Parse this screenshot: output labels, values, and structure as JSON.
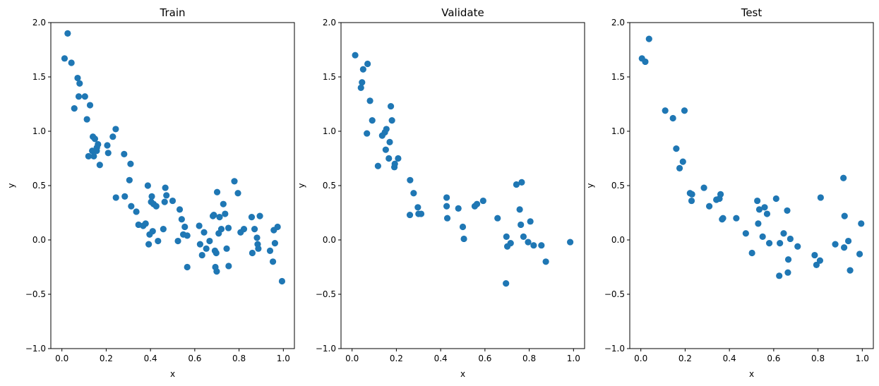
{
  "chart_data": [
    {
      "type": "scatter",
      "title": "Train",
      "xlabel": "x",
      "ylabel": "y",
      "xlim": [
        -0.05,
        1.05
      ],
      "ylim": [
        -1.0,
        2.0
      ],
      "xticks": [
        "0.0",
        "0.2",
        "0.4",
        "0.6",
        "0.8",
        "1.0"
      ],
      "yticks": [
        "−1.0",
        "−0.5",
        "0.0",
        "0.5",
        "1.0",
        "1.5",
        "2.0"
      ],
      "grid": false,
      "color": "#1f77b4",
      "series": [
        {
          "x": [
            0.012,
            0.026,
            0.043,
            0.056,
            0.071,
            0.076,
            0.08,
            0.104,
            0.113,
            0.12,
            0.127,
            0.137,
            0.144,
            0.14,
            0.149,
            0.157,
            0.158,
            0.163,
            0.171,
            0.205,
            0.209,
            0.23,
            0.243,
            0.244,
            0.281,
            0.284,
            0.305,
            0.31,
            0.313,
            0.336,
            0.346,
            0.367,
            0.378,
            0.388,
            0.392,
            0.396,
            0.403,
            0.406,
            0.41,
            0.414,
            0.426,
            0.434,
            0.458,
            0.464,
            0.467,
            0.472,
            0.5,
            0.524,
            0.532,
            0.541,
            0.548,
            0.555,
            0.566,
            0.566,
            0.62,
            0.624,
            0.633,
            0.642,
            0.652,
            0.667,
            0.682,
            0.686,
            0.691,
            0.693,
            0.697,
            0.699,
            0.701,
            0.708,
            0.712,
            0.72,
            0.729,
            0.737,
            0.744,
            0.752,
            0.753,
            0.779,
            0.795,
            0.807,
            0.822,
            0.857,
            0.86,
            0.87,
            0.881,
            0.884,
            0.887,
            0.894,
            0.94,
            0.953,
            0.957,
            0.962,
            0.974,
            0.994
          ],
          "y": [
            1.67,
            1.9,
            1.63,
            1.21,
            1.49,
            1.32,
            1.44,
            1.32,
            1.11,
            0.77,
            1.24,
            0.82,
            0.77,
            0.95,
            0.93,
            0.82,
            0.85,
            0.88,
            0.69,
            0.87,
            0.8,
            0.95,
            1.02,
            0.39,
            0.79,
            0.4,
            0.55,
            0.7,
            0.31,
            0.26,
            0.14,
            0.13,
            0.15,
            0.5,
            -0.04,
            0.05,
            0.35,
            0.4,
            0.08,
            0.33,
            0.31,
            -0.01,
            0.1,
            0.35,
            0.48,
            0.41,
            0.36,
            -0.01,
            0.28,
            0.19,
            0.05,
            0.12,
            -0.25,
            0.04,
            0.13,
            -0.04,
            -0.14,
            0.07,
            -0.08,
            -0.01,
            0.22,
            0.23,
            -0.1,
            -0.25,
            -0.12,
            -0.29,
            0.44,
            0.06,
            0.21,
            0.1,
            0.33,
            0.24,
            -0.08,
            0.11,
            -0.24,
            0.54,
            0.43,
            0.07,
            0.1,
            0.21,
            -0.12,
            0.1,
            0.02,
            -0.04,
            -0.08,
            0.22,
            -0.1,
            -0.2,
            0.09,
            -0.03,
            0.12,
            -0.38
          ]
        }
      ]
    },
    {
      "type": "scatter",
      "title": "Validate",
      "xlabel": "x",
      "ylabel": "y",
      "xlim": [
        -0.05,
        1.05
      ],
      "ylim": [
        -1.0,
        2.0
      ],
      "xticks": [
        "0.0",
        "0.2",
        "0.4",
        "0.6",
        "0.8",
        "1.0"
      ],
      "yticks": [
        "−1.0",
        "−0.5",
        "0.0",
        "0.5",
        "1.0",
        "1.5",
        "2.0"
      ],
      "grid": false,
      "color": "#1f77b4",
      "series": [
        {
          "x": [
            0.014,
            0.04,
            0.045,
            0.05,
            0.07,
            0.067,
            0.091,
            0.081,
            0.117,
            0.136,
            0.148,
            0.152,
            0.155,
            0.166,
            0.17,
            0.175,
            0.18,
            0.191,
            0.193,
            0.208,
            0.261,
            0.262,
            0.278,
            0.297,
            0.3,
            0.312,
            0.427,
            0.427,
            0.43,
            0.48,
            0.5,
            0.505,
            0.554,
            0.564,
            0.592,
            0.657,
            0.695,
            0.697,
            0.701,
            0.716,
            0.742,
            0.757,
            0.762,
            0.766,
            0.774,
            0.795,
            0.805,
            0.82,
            0.855,
            0.875,
            0.985
          ],
          "y": [
            1.7,
            1.4,
            1.45,
            1.57,
            1.62,
            0.98,
            1.1,
            1.28,
            0.68,
            0.96,
            0.99,
            0.83,
            1.02,
            0.75,
            0.9,
            1.23,
            1.1,
            0.67,
            0.7,
            0.75,
            0.23,
            0.55,
            0.43,
            0.3,
            0.24,
            0.24,
            0.31,
            0.39,
            0.2,
            0.29,
            0.12,
            0.01,
            0.31,
            0.33,
            0.36,
            0.2,
            -0.4,
            0.03,
            -0.06,
            -0.03,
            0.51,
            0.28,
            0.14,
            0.53,
            0.03,
            -0.02,
            0.17,
            -0.05,
            -0.05,
            -0.2,
            -0.02
          ]
        }
      ]
    },
    {
      "type": "scatter",
      "title": "Test",
      "xlabel": "x",
      "ylabel": "y",
      "xlim": [
        -0.05,
        1.05
      ],
      "ylim": [
        -1.0,
        2.0
      ],
      "xticks": [
        "0.0",
        "0.2",
        "0.4",
        "0.6",
        "0.8",
        "1.0"
      ],
      "yticks": [
        "−1.0",
        "−0.5",
        "0.0",
        "0.5",
        "1.0",
        "1.5",
        "2.0"
      ],
      "grid": false,
      "color": "#1f77b4",
      "series": [
        {
          "x": [
            0.005,
            0.02,
            0.037,
            0.11,
            0.145,
            0.16,
            0.175,
            0.19,
            0.197,
            0.222,
            0.229,
            0.231,
            0.285,
            0.309,
            0.341,
            0.355,
            0.36,
            0.367,
            0.371,
            0.431,
            0.474,
            0.502,
            0.526,
            0.53,
            0.535,
            0.55,
            0.559,
            0.57,
            0.58,
            0.611,
            0.625,
            0.628,
            0.645,
            0.661,
            0.664,
            0.666,
            0.675,
            0.708,
            0.785,
            0.793,
            0.809,
            0.812,
            0.878,
            0.915,
            0.918,
            0.92,
            0.937,
            0.945,
            0.988,
            0.995
          ],
          "y": [
            1.67,
            1.64,
            1.85,
            1.19,
            1.12,
            0.84,
            0.66,
            0.72,
            1.19,
            0.43,
            0.36,
            0.42,
            0.48,
            0.31,
            0.37,
            0.38,
            0.42,
            0.19,
            0.2,
            0.2,
            0.06,
            -0.12,
            0.36,
            0.15,
            0.28,
            0.03,
            0.3,
            0.24,
            -0.03,
            0.38,
            -0.33,
            -0.03,
            0.06,
            0.27,
            -0.3,
            -0.18,
            0.01,
            -0.06,
            -0.14,
            -0.23,
            -0.19,
            0.39,
            -0.04,
            0.57,
            -0.07,
            0.22,
            -0.01,
            -0.28,
            -0.13,
            0.15
          ]
        }
      ]
    }
  ]
}
